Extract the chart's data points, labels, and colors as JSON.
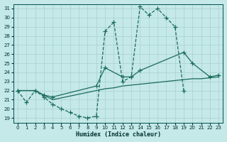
{
  "xlabel": "Humidex (Indice chaleur)",
  "bg_color": "#c5e8e8",
  "grid_color": "#a8d0d0",
  "line_color": "#1a6b5a",
  "xlim": [
    -0.5,
    23.5
  ],
  "ylim": [
    18.5,
    31.5
  ],
  "xticks": [
    0,
    1,
    2,
    3,
    4,
    5,
    6,
    7,
    8,
    9,
    10,
    11,
    12,
    13,
    14,
    15,
    16,
    17,
    18,
    19,
    20,
    21,
    22,
    23
  ],
  "yticks": [
    19,
    20,
    21,
    22,
    23,
    24,
    25,
    26,
    27,
    28,
    29,
    30,
    31
  ],
  "curve1_x": [
    0,
    1,
    2,
    3,
    4,
    5,
    6,
    7,
    8,
    9,
    10,
    11,
    12,
    13,
    14,
    15,
    16,
    17,
    18,
    19
  ],
  "curve1_y": [
    22.0,
    20.7,
    22.0,
    21.3,
    20.5,
    20.0,
    19.6,
    19.2,
    19.0,
    19.2,
    28.5,
    29.5,
    23.0,
    23.5,
    31.2,
    30.3,
    31.0,
    30.0,
    29.0,
    22.0
  ],
  "curve2_x": [
    0,
    2,
    3,
    4,
    9,
    10,
    12,
    13,
    14,
    19,
    20,
    22,
    23
  ],
  "curve2_y": [
    22.0,
    22.0,
    21.5,
    21.3,
    22.5,
    24.5,
    23.5,
    23.5,
    24.2,
    26.2,
    25.0,
    23.5,
    23.7
  ],
  "curve3_x": [
    0,
    2,
    3,
    4,
    9,
    10,
    11,
    12,
    13,
    14,
    15,
    16,
    17,
    18,
    19,
    20,
    21,
    22,
    23
  ],
  "curve3_y": [
    22.0,
    22.0,
    21.5,
    21.0,
    22.0,
    22.2,
    22.3,
    22.5,
    22.6,
    22.7,
    22.8,
    22.9,
    23.0,
    23.1,
    23.2,
    23.3,
    23.3,
    23.4,
    23.5
  ]
}
